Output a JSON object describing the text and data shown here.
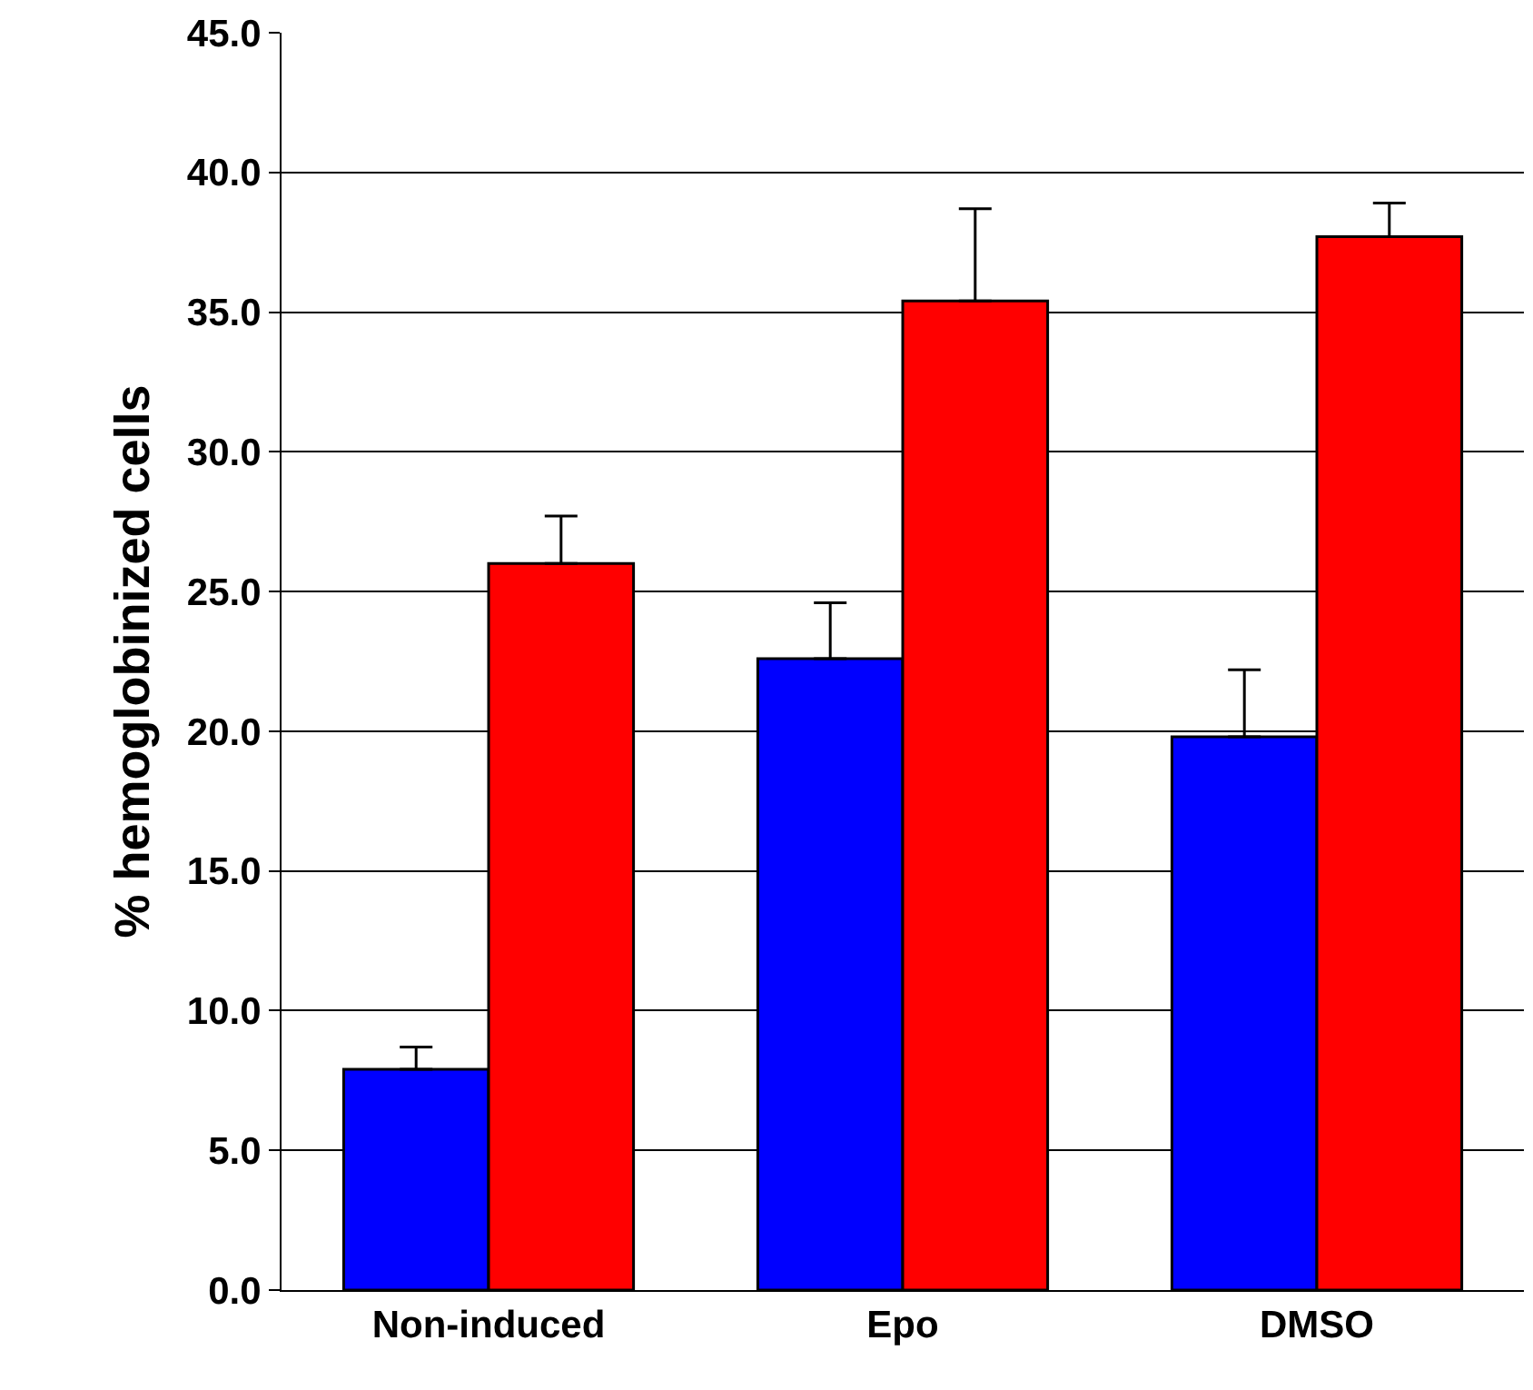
{
  "chart_data": {
    "type": "bar",
    "ylabel": "% hemoglobinized cells",
    "categories": [
      "Non-induced",
      "Epo",
      "DMSO"
    ],
    "series": [
      {
        "color": "#0000ff",
        "values": [
          7.9,
          22.6,
          19.8
        ],
        "errors": [
          [
            7.9,
            8.7
          ],
          [
            22.6,
            24.6
          ],
          [
            19.8,
            22.2
          ]
        ]
      },
      {
        "color": "#ff0000",
        "values": [
          26.0,
          35.4,
          37.7
        ],
        "errors": [
          [
            26.0,
            27.7
          ],
          [
            35.4,
            38.7
          ],
          [
            37.7,
            38.9
          ]
        ]
      }
    ],
    "ylim": [
      0,
      45
    ],
    "yticks": [
      {
        "value": 0,
        "label": "0.0"
      },
      {
        "value": 5,
        "label": "5.0"
      },
      {
        "value": 10,
        "label": "10.0"
      },
      {
        "value": 15,
        "label": "15.0"
      },
      {
        "value": 20,
        "label": "20.0"
      },
      {
        "value": 25,
        "label": "25.0"
      },
      {
        "value": 30,
        "label": "30.0"
      },
      {
        "value": 35,
        "label": "35.0"
      },
      {
        "value": 40,
        "label": "40.0"
      },
      {
        "value": 45,
        "label": "45.0"
      }
    ],
    "grid": "y"
  }
}
